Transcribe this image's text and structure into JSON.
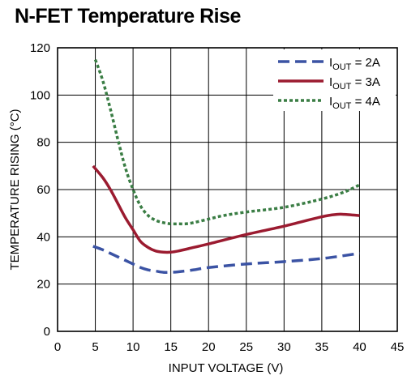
{
  "chart_data": {
    "type": "line",
    "title": "N-FET Temperature Rise",
    "xlabel": "INPUT VOLTAGE (V)",
    "ylabel": "TEMPERATURE RISING (°C)",
    "xlim": [
      0,
      45
    ],
    "ylim": [
      0,
      120
    ],
    "xticks": [
      0,
      5,
      10,
      15,
      20,
      25,
      30,
      35,
      40,
      45
    ],
    "yticks": [
      0,
      20,
      40,
      60,
      80,
      100,
      120
    ],
    "grid": true,
    "legend_position": "top-right",
    "series": [
      {
        "name": "IOUT = 2A",
        "name_main": "I",
        "name_sub": "OUT",
        "name_tail": " = 2A",
        "color": "#3b53a4",
        "dash": "dashed",
        "x": [
          4.7,
          6,
          7,
          8,
          9,
          10,
          11,
          12,
          13,
          14,
          15,
          16,
          18,
          20,
          25,
          30,
          35,
          40
        ],
        "y": [
          36,
          34.5,
          33,
          31.5,
          30,
          28.5,
          27,
          26,
          25.5,
          25,
          25,
          25.2,
          26,
          27,
          28.5,
          29.5,
          30.8,
          33
        ]
      },
      {
        "name": "IOUT = 3A",
        "name_main": "I",
        "name_sub": "OUT",
        "name_tail": " = 3A",
        "color": "#9b1b30",
        "dash": "solid",
        "x": [
          4.7,
          6,
          7,
          8,
          9,
          10,
          11,
          12,
          13,
          14,
          15,
          16,
          18,
          20,
          25,
          30,
          35,
          37,
          38,
          40
        ],
        "y": [
          70,
          65,
          60,
          54,
          48,
          43,
          38,
          35.5,
          34,
          33.5,
          33.5,
          34,
          35.5,
          37,
          41,
          44.5,
          48.5,
          49.5,
          49.5,
          49
        ]
      },
      {
        "name": "IOUT = 4A",
        "name_main": "I",
        "name_sub": "OUT",
        "name_tail": " = 4A",
        "color": "#3a7d44",
        "dash": "dotted",
        "x": [
          5,
          6,
          7,
          8,
          9,
          10,
          11,
          12,
          13,
          14,
          15,
          16,
          17,
          18,
          20,
          22,
          25,
          30,
          35,
          38,
          40
        ],
        "y": [
          115,
          106,
          94,
          81,
          69,
          60,
          53,
          49,
          47,
          46,
          45.5,
          45.5,
          45.5,
          46,
          47.5,
          49,
          50.5,
          52.5,
          56,
          59,
          62
        ]
      }
    ]
  }
}
